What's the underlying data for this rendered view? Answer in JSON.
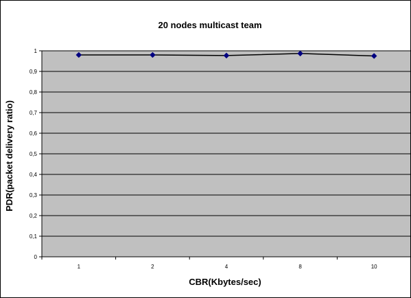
{
  "chart_data": {
    "type": "line",
    "title": "20 nodes multicast team",
    "xlabel": "CBR(Kbytes/sec)",
    "ylabel": "PDR(packet delivery ratio)",
    "categories": [
      "1",
      "2",
      "4",
      "8",
      "10"
    ],
    "series": [
      {
        "values": [
          0.98,
          0.98,
          0.977,
          0.987,
          0.975
        ],
        "color": "#000080",
        "line_color": "#000000"
      }
    ],
    "ylim": [
      0,
      1
    ],
    "yticks": [
      0,
      0.1,
      0.2,
      0.3,
      0.4,
      0.5,
      0.6,
      0.7,
      0.8,
      0.9,
      1
    ],
    "yticklabels": [
      "0",
      "0,1",
      "0,2",
      "0,3",
      "0,4",
      "0,5",
      "0,6",
      "0,7",
      "0,8",
      "0,9",
      "1"
    ],
    "grid": true,
    "legend": "none",
    "plot_background": "#c0c0c0"
  }
}
